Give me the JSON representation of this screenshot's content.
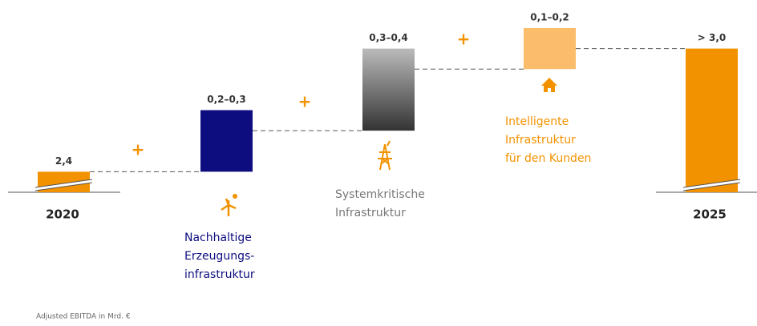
{
  "chart_data": {
    "type": "waterfall",
    "categories": [
      [
        "2020"
      ],
      [
        "Nachhaltige",
        "Erzeugungs-",
        "infrastruktur"
      ],
      [
        "Systemkritische",
        "Infrastruktur"
      ],
      [
        "Intelligente",
        "Infrastruktur",
        "für den Kunden"
      ],
      [
        "2025"
      ]
    ],
    "values": [
      2.4,
      [
        0.2,
        0.3
      ],
      [
        0.3,
        0.4
      ],
      [
        0.1,
        0.2
      ],
      3.0
    ],
    "value_labels": [
      "2,4",
      "0,2–0,3",
      "0,3–0,4",
      "0,1–0,2",
      "> 3,0"
    ],
    "colors": [
      "#f39200",
      "#0d0d80",
      "#555555",
      "#fbbd6b",
      "#f39200"
    ],
    "label_colors": [
      "#222222",
      "#0d0d80",
      "#777777",
      "#f39200",
      "#222222"
    ],
    "ylim": [
      2.3,
      3.1
    ],
    "connector_symbol": "+",
    "footnote": "Adjusted EBITDA in Mrd. €"
  }
}
